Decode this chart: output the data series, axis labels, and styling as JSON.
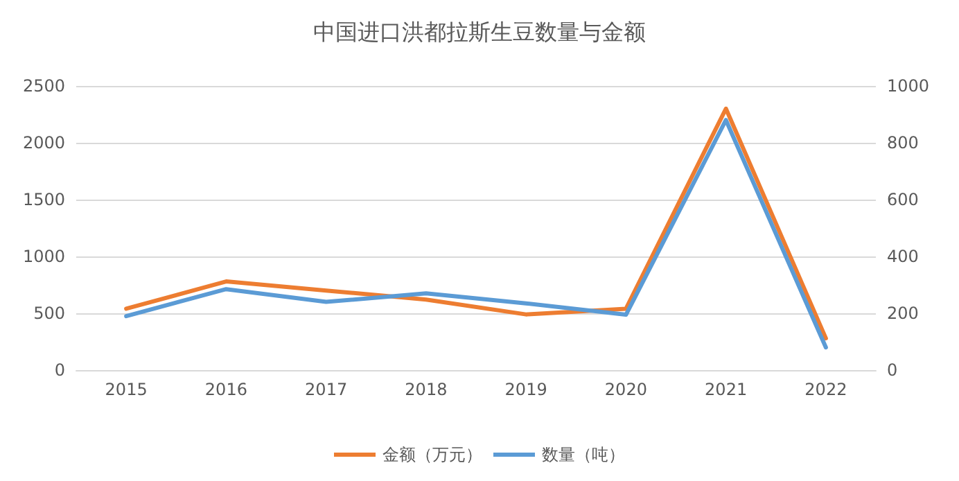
{
  "chart_data": {
    "type": "line",
    "title": "中国进口洪都拉斯生豆数量与金额",
    "categories": [
      "2015",
      "2016",
      "2017",
      "2018",
      "2019",
      "2020",
      "2021",
      "2022"
    ],
    "series": [
      {
        "name": "金额（万元）",
        "color": "#ed7d31",
        "values": [
          540,
          780,
          700,
          620,
          490,
          540,
          2300,
          280
        ]
      },
      {
        "name": "数量（吨）",
        "color": "#5b9bd5",
        "axis": "y2",
        "values": [
          190,
          285,
          240,
          270,
          235,
          195,
          880,
          80
        ]
      }
    ],
    "ylim": [
      0,
      2500
    ],
    "yticks": [
      0,
      500,
      1000,
      1500,
      2000,
      2500
    ],
    "y2lim": [
      0,
      1000
    ],
    "y2ticks": [
      0,
      200,
      400,
      600,
      800,
      1000
    ],
    "grid": "y",
    "legend": "bottom",
    "marker": "none",
    "line_style": "solid"
  }
}
